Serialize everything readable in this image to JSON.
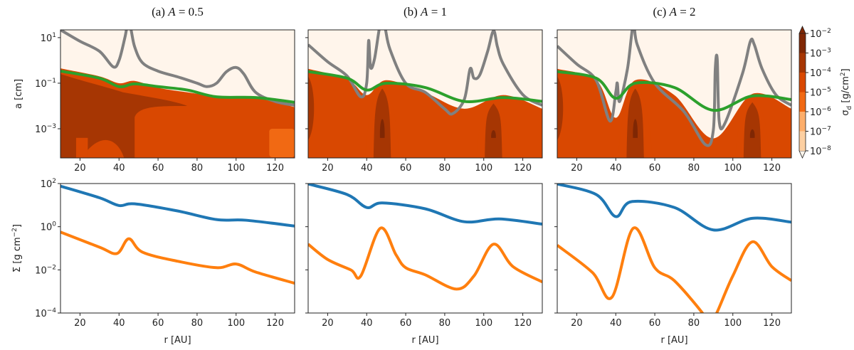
{
  "chart_data": [
    {
      "type": "contour+line",
      "title_prefix": "(a) ",
      "title_var": "A",
      "title_value": " = 0.5",
      "ylabel": "a [cm]",
      "xlabel": "",
      "xlim": [
        10,
        130
      ],
      "ylim_log10": [
        -4.28,
        1.34
      ],
      "xticks": [
        20,
        40,
        60,
        80,
        100,
        120
      ],
      "yticks": [
        {
          "log": 1,
          "label": "10",
          "exp": "1"
        },
        {
          "log": -1,
          "label": "10",
          "exp": "−1"
        },
        {
          "log": -3,
          "label": "10",
          "exp": "−3"
        }
      ],
      "series": [
        {
          "name": "gray-limit",
          "color": "#808080",
          "r": [
            10,
            20,
            30,
            37,
            40,
            43,
            44.5,
            46,
            48,
            52,
            60,
            70,
            80,
            85,
            90,
            95,
            100,
            104,
            110,
            120,
            130
          ],
          "log10_a": [
            1.34,
            0.84,
            0.4,
            -0.28,
            0.0,
            1.0,
            1.6,
            1.4,
            0.6,
            -0.1,
            -0.47,
            -0.72,
            -1.0,
            -1.15,
            -1.0,
            -0.5,
            -0.31,
            -0.6,
            -1.4,
            -1.8,
            -1.97
          ]
        },
        {
          "name": "green-limit",
          "color": "#2ca02c",
          "r": [
            10,
            30,
            40,
            48,
            60,
            75,
            90,
            110,
            130
          ],
          "log10_a": [
            -0.47,
            -0.78,
            -1.15,
            -1.03,
            -1.15,
            -1.3,
            -1.6,
            -1.63,
            -1.84
          ]
        }
      ],
      "dust_edge_log10_a": [
        -0.4,
        -0.75,
        -1.05,
        -0.95,
        -1.25,
        -1.45,
        -1.62,
        -1.7,
        -2.1
      ],
      "dark_streaks_r": [
        45
      ],
      "base_level": "1e-4 to 1e-3"
    },
    {
      "type": "contour+line",
      "title_prefix": "(b) ",
      "title_var": "A",
      "title_value": " = 1",
      "xlim": [
        10,
        130
      ],
      "ylim_log10": [
        -4.28,
        1.34
      ],
      "xticks": [
        20,
        40,
        60,
        80,
        100,
        120
      ],
      "series": [
        {
          "name": "gray-limit",
          "color": "#808080",
          "r": [
            10,
            20,
            30,
            37,
            40,
            41,
            42,
            44,
            46.5,
            48,
            49.5,
            52,
            60,
            70,
            80,
            84,
            90,
            93,
            95,
            98,
            102,
            105,
            107,
            110,
            120,
            130
          ],
          "log10_a": [
            0.69,
            -0.06,
            -0.69,
            -1.6,
            -1.0,
            0.87,
            -0.31,
            0.06,
            1.4,
            1.7,
            1.4,
            0.47,
            -1.0,
            -1.4,
            -2.13,
            -2.34,
            -1.72,
            -0.37,
            -0.78,
            -0.63,
            0.4,
            1.3,
            0.6,
            -0.16,
            -1.5,
            -1.97
          ]
        },
        {
          "name": "green-limit",
          "color": "#2ca02c",
          "r": [
            10,
            30,
            40,
            50,
            70,
            90,
            110,
            130
          ],
          "log10_a": [
            -0.49,
            -0.78,
            -1.3,
            -1.0,
            -1.19,
            -1.8,
            -1.63,
            -1.8
          ]
        }
      ],
      "dust_edge_log10_a": [
        -0.45,
        -0.9,
        -1.6,
        -0.95,
        -1.5,
        -2.2,
        -1.6,
        -2.2
      ],
      "dark_streaks_r": [
        48,
        105
      ],
      "base_level": "1e-5 to 1e-4"
    },
    {
      "type": "contour+line",
      "title_prefix": "(c) ",
      "title_var": "A",
      "title_value": " = 2",
      "xlim": [
        10,
        130
      ],
      "ylim_log10": [
        -4.28,
        1.34
      ],
      "xticks": [
        20,
        40,
        60,
        80,
        100,
        120
      ],
      "series": [
        {
          "name": "gray-limit",
          "color": "#808080",
          "r": [
            10,
            20,
            30,
            37,
            40,
            40.8,
            42,
            46,
            49,
            51,
            60,
            75,
            86,
            90,
            91,
            92,
            93,
            96,
            105,
            109,
            111,
            115,
            122,
            130
          ],
          "log10_a": [
            0.63,
            -0.16,
            -0.88,
            -2.66,
            -1.4,
            -1.0,
            -1.8,
            -0.37,
            1.6,
            0.69,
            -1.0,
            -2.25,
            -3.7,
            -3.06,
            -0.37,
            0.06,
            -2.66,
            -2.75,
            -0.56,
            0.84,
            0.69,
            -0.37,
            -1.5,
            -1.97
          ]
        },
        {
          "name": "green-limit",
          "color": "#2ca02c",
          "r": [
            10,
            30,
            40,
            50,
            70,
            90,
            110,
            130
          ],
          "log10_a": [
            -0.49,
            -0.78,
            -1.66,
            -1.0,
            -1.19,
            -2.19,
            -1.56,
            -1.72
          ]
        }
      ],
      "dust_edge_log10_a": [
        -0.45,
        -0.95,
        -2.6,
        -0.95,
        -1.6,
        -3.5,
        -1.55,
        -2.2
      ],
      "dark_streaks_r": [
        50,
        110
      ],
      "base_level": "1e-5 to 1e-4"
    },
    {
      "type": "line",
      "ylabel": "Σ [g cm",
      "ylabel_exp": "−2",
      "ylabel_end": "]",
      "xlabel": "r [AU]",
      "xlim": [
        10,
        130
      ],
      "ylim_log10": [
        -4,
        2
      ],
      "xticks": [
        20,
        40,
        60,
        80,
        100,
        120
      ],
      "yticks": [
        {
          "log": 2,
          "label": "10",
          "exp": "2"
        },
        {
          "log": 0,
          "label": "10",
          "exp": "0"
        },
        {
          "log": -2,
          "label": "10",
          "exp": "−2"
        },
        {
          "log": -4,
          "label": "10",
          "exp": "−4"
        }
      ],
      "series": [
        {
          "name": "gas",
          "color": "#1f77b4",
          "r": [
            10,
            30,
            40,
            48,
            70,
            90,
            105,
            130
          ],
          "log10_sigma": [
            1.88,
            1.34,
            0.98,
            1.06,
            0.73,
            0.33,
            0.3,
            0.03
          ]
        },
        {
          "name": "dust",
          "color": "#ff7f0e",
          "r": [
            10,
            30,
            39,
            45,
            52,
            70,
            90,
            100,
            110,
            130
          ],
          "log10_sigma": [
            -0.25,
            -0.95,
            -1.24,
            -0.56,
            -1.18,
            -1.6,
            -1.9,
            -1.73,
            -2.1,
            -2.62
          ]
        }
      ]
    },
    {
      "type": "line",
      "xlabel": "r [AU]",
      "xlim": [
        10,
        130
      ],
      "ylim_log10": [
        -4,
        2
      ],
      "xticks": [
        20,
        40,
        60,
        80,
        100,
        120
      ],
      "series": [
        {
          "name": "gas",
          "color": "#1f77b4",
          "r": [
            10,
            30,
            40,
            48,
            70,
            90,
            108,
            130
          ],
          "log10_sigma": [
            1.98,
            1.49,
            0.89,
            1.1,
            0.83,
            0.23,
            0.36,
            0.12
          ]
        },
        {
          "name": "dust",
          "color": "#ff7f0e",
          "r": [
            10,
            20,
            32,
            37,
            47,
            55,
            60,
            70,
            86,
            95,
            105,
            115,
            130
          ],
          "log10_sigma": [
            -0.81,
            -1.52,
            -2.01,
            -2.28,
            -0.07,
            -1.3,
            -1.9,
            -2.23,
            -2.89,
            -2.28,
            -0.81,
            -1.85,
            -2.56
          ]
        }
      ]
    },
    {
      "type": "line",
      "xlabel": "r [AU]",
      "xlim": [
        10,
        130
      ],
      "ylim_log10": [
        -4,
        2
      ],
      "xticks": [
        20,
        40,
        60,
        80,
        100,
        120
      ],
      "series": [
        {
          "name": "gas",
          "color": "#1f77b4",
          "r": [
            10,
            30,
            40,
            48,
            70,
            90,
            110,
            130
          ],
          "log10_sigma": [
            1.98,
            1.49,
            0.47,
            1.16,
            0.89,
            -0.15,
            0.39,
            0.21
          ]
        },
        {
          "name": "dust",
          "color": "#ff7f0e",
          "r": [
            10,
            28,
            38,
            49,
            60,
            70,
            84,
            88,
            92,
            100,
            110,
            120,
            130
          ],
          "log10_sigma": [
            -0.86,
            -2.12,
            -3.27,
            -0.07,
            -1.9,
            -2.5,
            -3.95,
            -4.6,
            -3.95,
            -2.28,
            -0.7,
            -1.85,
            -2.5
          ]
        }
      ]
    }
  ],
  "colorbar": {
    "label": "σ",
    "label_sub": "d",
    "label_unit": " [g/cm",
    "label_exp": "2",
    "label_end": "]",
    "levels": [
      {
        "exp": "−8",
        "color": "#fff5eb"
      },
      {
        "exp": "−7",
        "color": "#fdd0a2"
      },
      {
        "exp": "−6",
        "color": "#fdae6b"
      },
      {
        "exp": "−5",
        "color": "#f16913"
      },
      {
        "exp": "−4",
        "color": "#d94801"
      },
      {
        "exp": "−3",
        "color": "#a63603"
      },
      {
        "exp": "−2",
        "color": "#7f2704"
      }
    ],
    "base": "10"
  }
}
